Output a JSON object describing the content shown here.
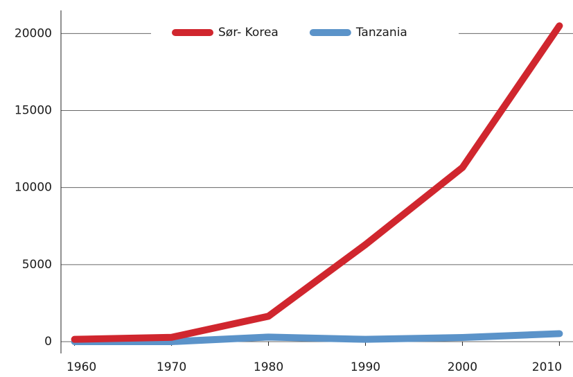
{
  "chart_data": {
    "type": "line",
    "x": [
      1960,
      1970,
      1980,
      1990,
      2000,
      2010
    ],
    "series": [
      {
        "name": "Sør- Korea",
        "color": "#d0262e",
        "values": [
          150,
          280,
          1650,
          6300,
          11300,
          20500
        ]
      },
      {
        "name": "Tanzania",
        "color": "#5b93c9",
        "values": [
          0,
          0,
          300,
          150,
          270,
          520
        ]
      }
    ],
    "xlim": [
      1958.6,
      2011.4
    ],
    "xticks": [
      1960,
      1970,
      1980,
      1990,
      2000,
      2010
    ],
    "ylim": [
      0,
      21500
    ],
    "yticks": [
      0,
      5000,
      10000,
      15000,
      20000
    ],
    "grid": true,
    "legend": "top"
  }
}
